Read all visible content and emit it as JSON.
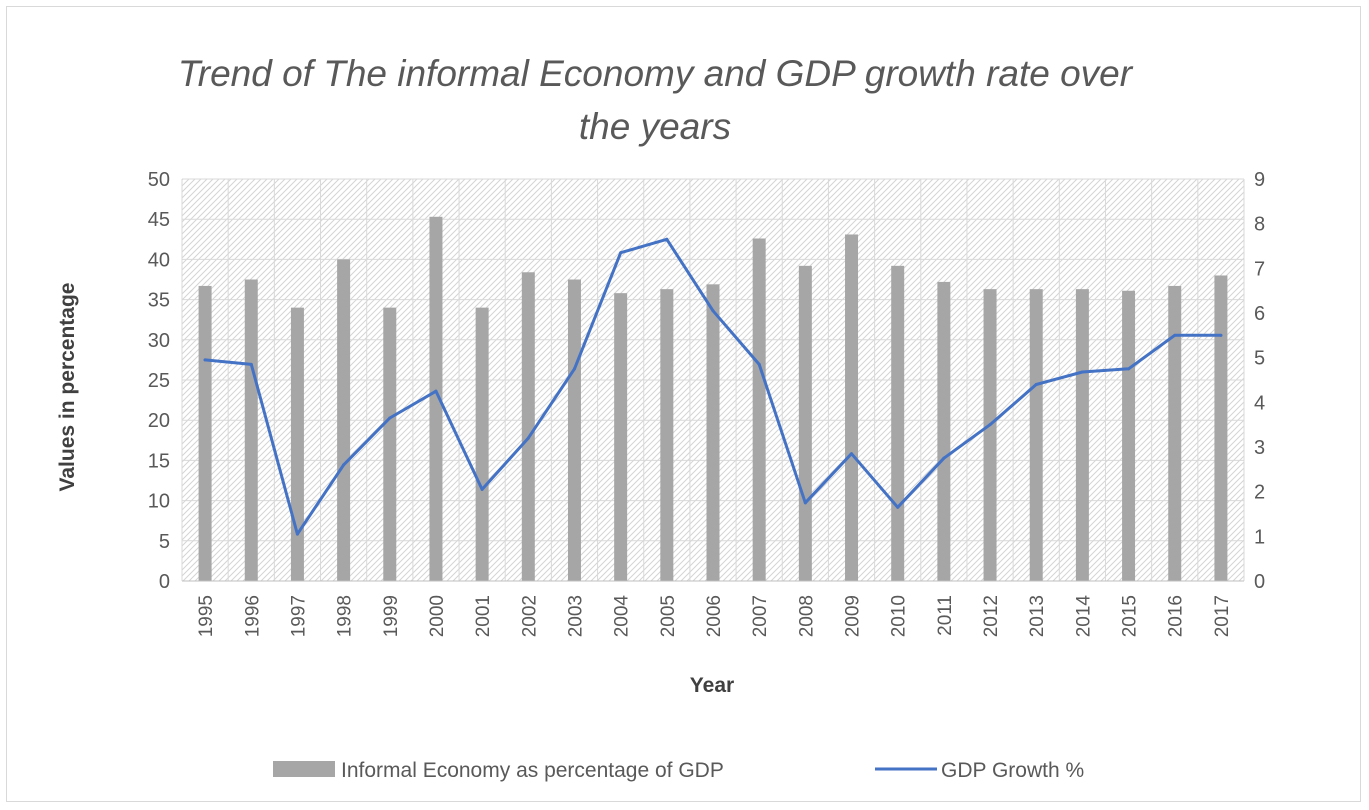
{
  "chart_data": {
    "type": "bar",
    "title": "Trend of The informal Economy and GDP growth rate over the years",
    "title_lines": [
      "Trend of The informal Economy and GDP growth rate over",
      "the years"
    ],
    "xlabel": "Year",
    "ylabel": "Values in percentage",
    "y2label": "",
    "ylim": [
      0,
      50
    ],
    "y2lim": [
      0,
      9
    ],
    "yticks": [
      "0",
      "5",
      "10",
      "15",
      "20",
      "25",
      "30",
      "35",
      "40",
      "45",
      "50"
    ],
    "y2ticks": [
      "0",
      "1",
      "2",
      "3",
      "4",
      "5",
      "6",
      "7",
      "8",
      "9"
    ],
    "grid": true,
    "legend_position": "bottom",
    "categories": [
      "1995",
      "1996",
      "1997",
      "1998",
      "1999",
      "2000",
      "2001",
      "2002",
      "2003",
      "2004",
      "2005",
      "2006",
      "2007",
      "2008",
      "2009",
      "2010",
      "2011",
      "2012",
      "2013",
      "2014",
      "2015",
      "2016",
      "2017"
    ],
    "series": [
      {
        "name": "Informal Economy as percentage of GDP",
        "type": "bar",
        "axis": "left",
        "color": "#a6a6a6",
        "values": [
          36.7,
          37.5,
          34.0,
          40.0,
          34.0,
          45.3,
          34.0,
          38.4,
          37.5,
          35.8,
          36.3,
          36.9,
          42.6,
          39.2,
          43.1,
          39.2,
          37.2,
          36.3,
          36.3,
          36.3,
          36.1,
          36.7,
          38.0
        ]
      },
      {
        "name": "GDP Growth %",
        "type": "line",
        "axis": "right",
        "color": "#4472c4",
        "values": [
          4.95,
          4.85,
          1.05,
          2.6,
          3.65,
          4.25,
          2.05,
          3.2,
          4.75,
          7.35,
          7.65,
          6.05,
          4.85,
          1.75,
          2.85,
          1.65,
          2.75,
          3.5,
          4.4,
          4.68,
          4.75,
          5.5,
          5.5
        ]
      }
    ]
  }
}
